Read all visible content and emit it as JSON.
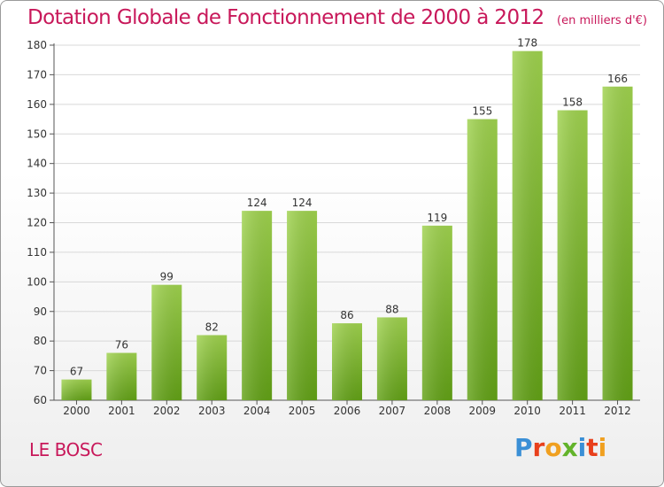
{
  "header": {
    "title": "Dotation Globale de Fonctionnement de 2000 à 2012",
    "unit": "(en milliers d'€)"
  },
  "footer": {
    "commune": "LE BOSC",
    "brand": "Proxiti"
  },
  "colors": {
    "title": "#c8185a",
    "bar_top": "#9fd24e",
    "bar_bottom": "#62a116",
    "brand_letters": [
      "#3a8fd6",
      "#e8401c",
      "#f0a020",
      "#62b32a",
      "#3a8fd6",
      "#e8401c",
      "#f0a020"
    ]
  },
  "chart_data": {
    "type": "bar",
    "categories": [
      "2000",
      "2001",
      "2002",
      "2003",
      "2004",
      "2005",
      "2006",
      "2007",
      "2008",
      "2009",
      "2010",
      "2011",
      "2012"
    ],
    "values": [
      67,
      76,
      99,
      82,
      124,
      124,
      86,
      88,
      119,
      155,
      178,
      158,
      166
    ],
    "ylim": [
      60,
      180
    ],
    "yticks": [
      60,
      70,
      80,
      90,
      100,
      110,
      120,
      130,
      140,
      150,
      160,
      170,
      180
    ],
    "grid": true,
    "data_labels": true
  }
}
